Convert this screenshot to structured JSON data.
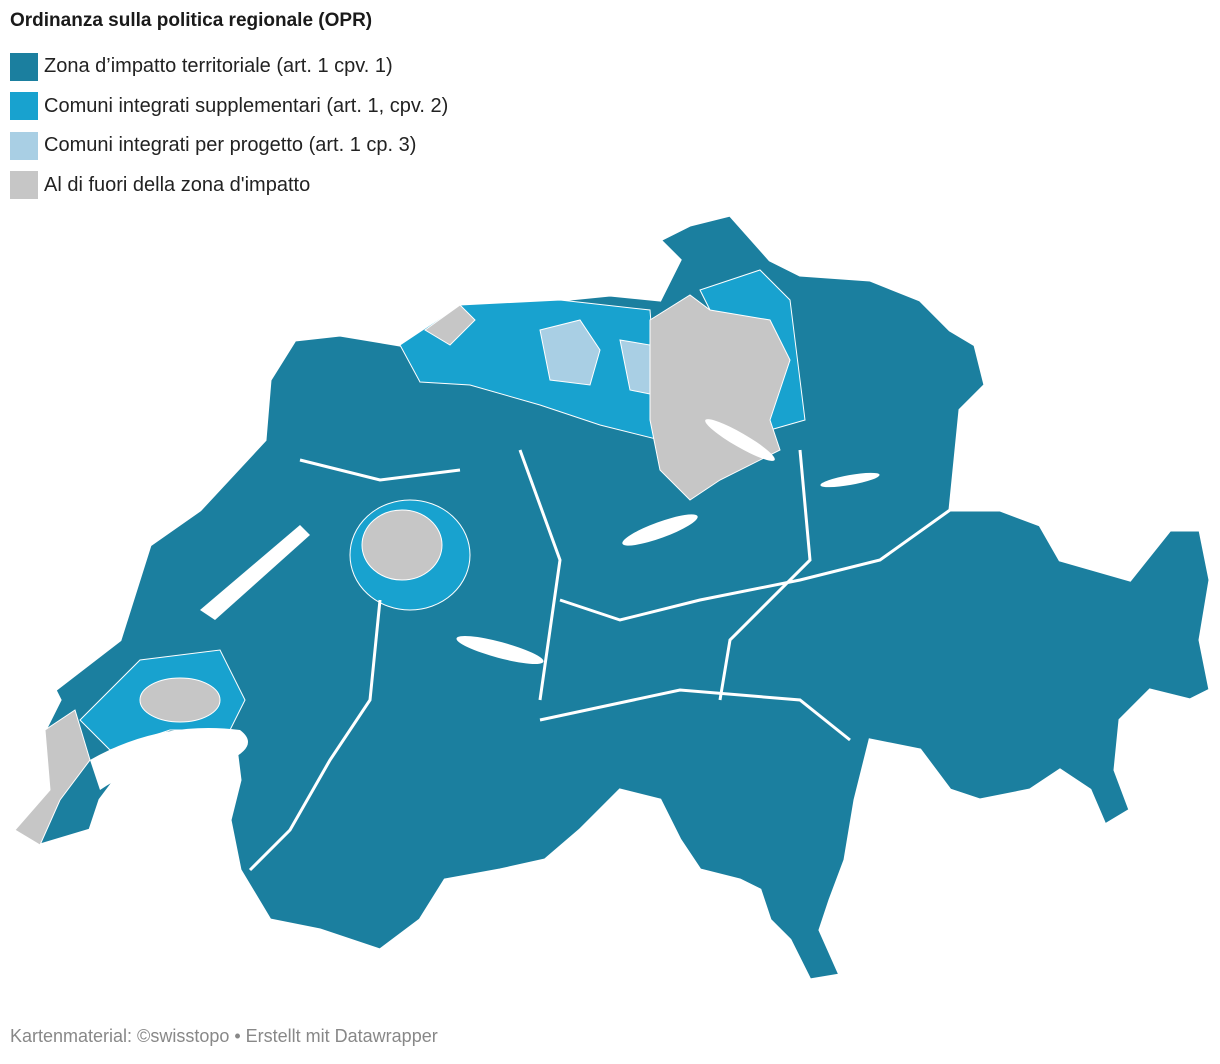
{
  "title": "Ordinanza sulla politica regionale (OPR)",
  "legend": [
    {
      "label": "Zona d’impatto territoriale (art. 1 cpv. 1)",
      "color": "#1b7f9f"
    },
    {
      "label": "Comuni integrati supplementari (art. 1, cpv. 2)",
      "color": "#18a2cf"
    },
    {
      "label": "Comuni integrati per progetto (art. 1 cp. 3)",
      "color": "#a9cfe4"
    },
    {
      "label": "Al di fuori della zona d'impatto",
      "color": "#c6c6c6"
    }
  ],
  "footer": "Kartenmaterial: ©swisstopo • Erstellt mit Datawrapper"
}
